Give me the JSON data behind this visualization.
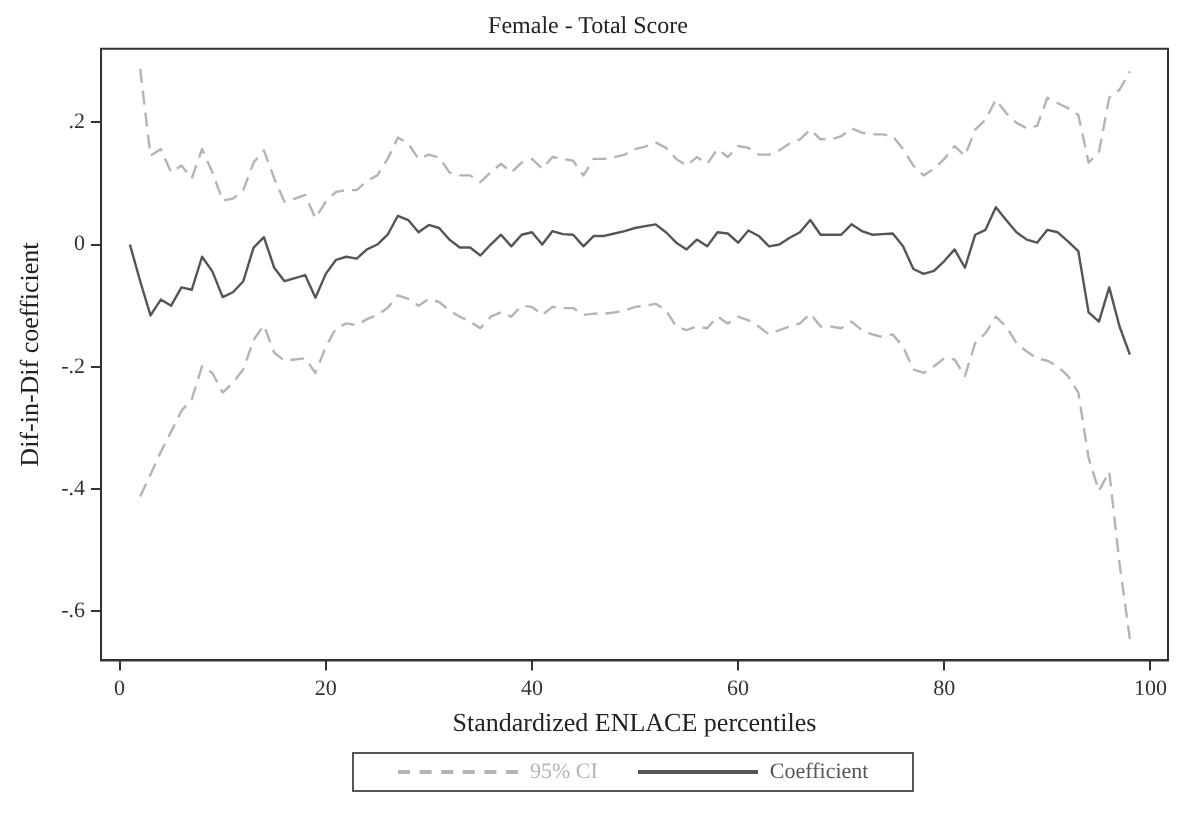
{
  "chart_data": {
    "type": "line",
    "title": "Female - Total Score",
    "xlabel": "Standardized ENLACE percentiles",
    "ylabel": "Dif-in-Dif coefficient",
    "x": [
      1,
      2,
      3,
      4,
      5,
      6,
      7,
      8,
      9,
      10,
      11,
      12,
      13,
      14,
      15,
      16,
      17,
      18,
      19,
      20,
      21,
      22,
      23,
      24,
      25,
      26,
      27,
      28,
      29,
      30,
      31,
      32,
      33,
      34,
      35,
      36,
      37,
      38,
      39,
      40,
      41,
      42,
      43,
      44,
      45,
      46,
      47,
      48,
      49,
      50,
      51,
      52,
      53,
      54,
      55,
      56,
      57,
      58,
      59,
      60,
      61,
      62,
      63,
      64,
      65,
      66,
      67,
      68,
      69,
      70,
      71,
      72,
      73,
      74,
      75,
      76,
      77,
      78,
      79,
      80,
      81,
      82,
      83,
      84,
      85,
      86,
      87,
      88,
      89,
      90,
      91,
      92,
      93,
      94,
      95,
      96,
      97,
      98
    ],
    "series": [
      {
        "name": "95% CI",
        "color": "#b4b4b4",
        "line_style": "dashed",
        "x": [
          2,
          3,
          4,
          5,
          6,
          7,
          8,
          9,
          10,
          11,
          12,
          13,
          14,
          15,
          16,
          17,
          18,
          19,
          20,
          21,
          22,
          23,
          24,
          25,
          26,
          27,
          28,
          29,
          30,
          31,
          32,
          33,
          34,
          35,
          36,
          37,
          38,
          39,
          40,
          41,
          42,
          43,
          44,
          45,
          46,
          47,
          48,
          49,
          50,
          51,
          52,
          53,
          54,
          55,
          56,
          57,
          58,
          59,
          60,
          61,
          62,
          63,
          64,
          65,
          66,
          67,
          68,
          69,
          70,
          71,
          72,
          73,
          74,
          75,
          76,
          77,
          78,
          79,
          80,
          81,
          82,
          83,
          84,
          85,
          86,
          87,
          88,
          89,
          90,
          91,
          92,
          93,
          94,
          95,
          96,
          97,
          98
        ],
        "values": [
          0.287,
          0.145,
          0.156,
          0.118,
          0.129,
          0.108,
          0.156,
          0.118,
          0.072,
          0.075,
          0.089,
          0.134,
          0.154,
          0.108,
          0.07,
          0.075,
          0.081,
          0.043,
          0.07,
          0.086,
          0.089,
          0.089,
          0.104,
          0.113,
          0.14,
          0.175,
          0.165,
          0.14,
          0.147,
          0.142,
          0.118,
          0.113,
          0.113,
          0.102,
          0.118,
          0.132,
          0.118,
          0.134,
          0.14,
          0.124,
          0.143,
          0.14,
          0.137,
          0.113,
          0.14,
          0.14,
          0.143,
          0.147,
          0.156,
          0.16,
          0.167,
          0.158,
          0.14,
          0.129,
          0.143,
          0.132,
          0.156,
          0.143,
          0.161,
          0.158,
          0.147,
          0.147,
          0.154,
          0.165,
          0.172,
          0.188,
          0.172,
          0.172,
          0.177,
          0.19,
          0.183,
          0.18,
          0.18,
          0.177,
          0.156,
          0.129,
          0.113,
          0.124,
          0.14,
          0.161,
          0.145,
          0.188,
          0.204,
          0.237,
          0.215,
          0.199,
          0.19,
          0.194,
          0.24,
          0.231,
          0.223,
          0.212,
          0.134,
          0.151,
          0.24,
          0.253,
          0.283
        ]
      },
      {
        "color": "#b4b4b4",
        "line_style": "dashed",
        "x": [
          2,
          3,
          4,
          5,
          6,
          7,
          8,
          9,
          10,
          11,
          12,
          13,
          14,
          15,
          16,
          17,
          18,
          19,
          20,
          21,
          22,
          23,
          24,
          25,
          26,
          27,
          28,
          29,
          30,
          31,
          32,
          33,
          34,
          35,
          36,
          37,
          38,
          39,
          40,
          41,
          42,
          43,
          44,
          45,
          46,
          47,
          48,
          49,
          50,
          51,
          52,
          53,
          54,
          55,
          56,
          57,
          58,
          59,
          60,
          61,
          62,
          63,
          64,
          65,
          66,
          67,
          68,
          69,
          70,
          71,
          72,
          73,
          74,
          75,
          76,
          77,
          78,
          79,
          80,
          81,
          82,
          83,
          84,
          85,
          86,
          87,
          88,
          89,
          90,
          91,
          92,
          93,
          94,
          95,
          96,
          97,
          98
        ],
        "values": [
          -0.412,
          -0.376,
          -0.339,
          -0.306,
          -0.272,
          -0.253,
          -0.199,
          -0.21,
          -0.242,
          -0.226,
          -0.204,
          -0.156,
          -0.132,
          -0.177,
          -0.19,
          -0.188,
          -0.186,
          -0.21,
          -0.167,
          -0.137,
          -0.129,
          -0.132,
          -0.122,
          -0.115,
          -0.104,
          -0.083,
          -0.089,
          -0.1,
          -0.089,
          -0.094,
          -0.108,
          -0.118,
          -0.126,
          -0.137,
          -0.118,
          -0.111,
          -0.118,
          -0.1,
          -0.102,
          -0.115,
          -0.102,
          -0.104,
          -0.104,
          -0.115,
          -0.113,
          -0.113,
          -0.111,
          -0.108,
          -0.102,
          -0.1,
          -0.097,
          -0.108,
          -0.134,
          -0.14,
          -0.134,
          -0.137,
          -0.118,
          -0.129,
          -0.118,
          -0.124,
          -0.134,
          -0.147,
          -0.14,
          -0.134,
          -0.129,
          -0.113,
          -0.134,
          -0.134,
          -0.137,
          -0.126,
          -0.14,
          -0.147,
          -0.151,
          -0.147,
          -0.167,
          -0.204,
          -0.21,
          -0.199,
          -0.186,
          -0.188,
          -0.215,
          -0.161,
          -0.145,
          -0.118,
          -0.134,
          -0.161,
          -0.175,
          -0.186,
          -0.19,
          -0.199,
          -0.215,
          -0.242,
          -0.349,
          -0.403,
          -0.371,
          -0.522,
          -0.645
        ]
      },
      {
        "name": "Coefficient",
        "color": "#555555",
        "line_style": "solid",
        "values": [
          0,
          -0.06,
          -0.116,
          -0.09,
          -0.1,
          -0.07,
          -0.074,
          -0.02,
          -0.044,
          -0.086,
          -0.078,
          -0.06,
          -0.005,
          0.012,
          -0.038,
          -0.06,
          -0.055,
          -0.05,
          -0.087,
          -0.048,
          -0.025,
          -0.02,
          -0.023,
          -0.008,
          0,
          0.016,
          0.047,
          0.04,
          0.02,
          0.032,
          0.027,
          0.008,
          -0.005,
          -0.005,
          -0.018,
          0,
          0.016,
          -0.003,
          0.016,
          0.02,
          0,
          0.022,
          0.017,
          0.016,
          -0.003,
          0.014,
          0.014,
          0.018,
          0.022,
          0.027,
          0.03,
          0.033,
          0.02,
          0.003,
          -0.008,
          0.008,
          -0.003,
          0.02,
          0.018,
          0.003,
          0.023,
          0.014,
          -0.003,
          0,
          0.011,
          0.02,
          0.04,
          0.016,
          0.016,
          0.016,
          0.033,
          0.022,
          0.016,
          0.017,
          0.018,
          -0.003,
          -0.04,
          -0.048,
          -0.043,
          -0.027,
          -0.008,
          -0.038,
          0.016,
          0.024,
          0.061,
          0.04,
          0.02,
          0.008,
          0.003,
          0.024,
          0.02,
          0.005,
          -0.011,
          -0.111,
          -0.126,
          -0.07,
          -0.134,
          -0.18
        ]
      }
    ],
    "xlim": [
      -1.8,
      101.7
    ],
    "xticks": [
      0,
      20,
      40,
      60,
      80,
      100
    ],
    "ylim": [
      -0.68,
      0.32
    ],
    "yticks": [
      {
        "value": 0.2,
        "label": ".2"
      },
      0,
      {
        "value": -0.2,
        "label": "-.2"
      },
      {
        "value": -0.4,
        "label": "-.4"
      },
      {
        "value": -0.6,
        "label": "-.6"
      }
    ],
    "grid": false,
    "legend": "bottom",
    "marker": "none"
  }
}
